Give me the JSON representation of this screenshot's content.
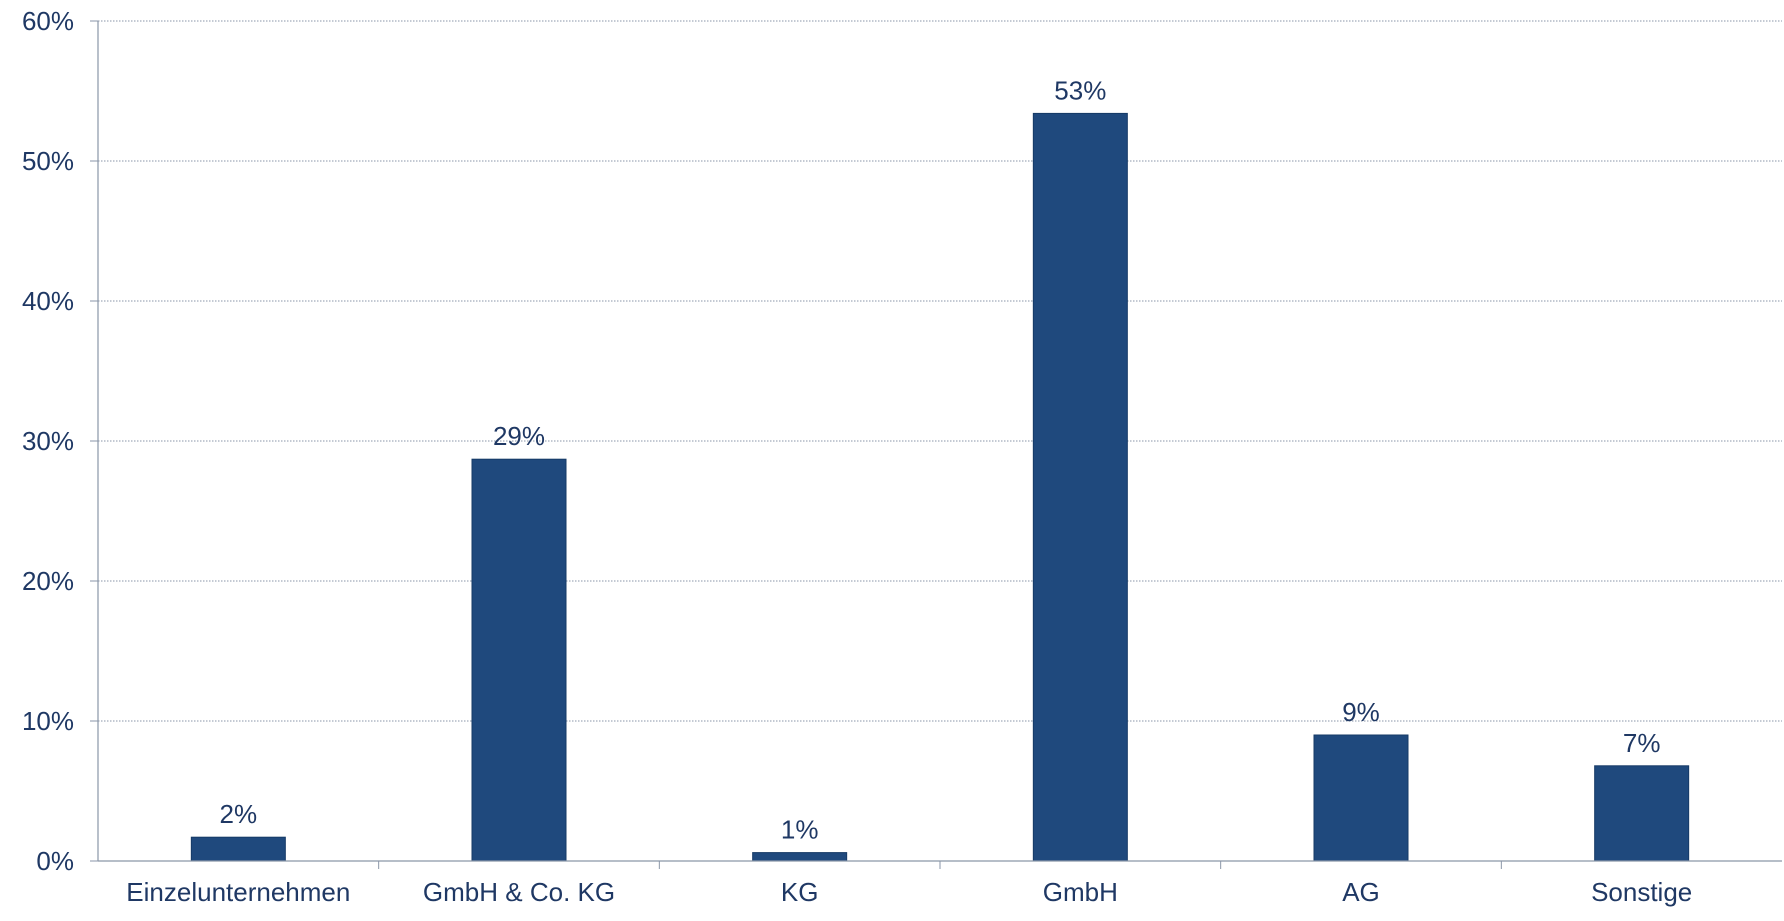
{
  "chart_data": {
    "type": "bar",
    "categories": [
      "Einzelunternehmen",
      "GmbH & Co. KG",
      "KG",
      "GmbH",
      "AG",
      "Sonstige"
    ],
    "values": [
      1.7,
      28.7,
      0.6,
      53.4,
      9.0,
      6.8
    ],
    "data_labels": [
      "2%",
      "29%",
      "1%",
      "53%",
      "9%",
      "7%"
    ],
    "y_ticks": [
      0,
      10,
      20,
      30,
      40,
      50,
      60
    ],
    "y_tick_labels": [
      "0%",
      "10%",
      "20%",
      "30%",
      "40%",
      "50%",
      "60%"
    ],
    "ylim": [
      0,
      60
    ],
    "grid": true,
    "legend": "none",
    "colors": {
      "bar": "#1f497d",
      "text": "#1f3864",
      "grid": "#8a96a8",
      "axis": "#8a96a8"
    }
  }
}
